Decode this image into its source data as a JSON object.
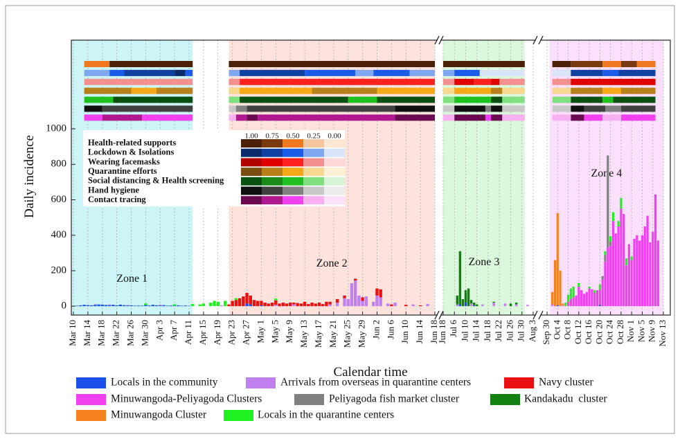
{
  "chart_data": {
    "type": "stacked-bar",
    "ylabel": "Daily incidence",
    "xlabel": "Calendar time",
    "ylim": [
      -50,
      1500
    ],
    "yticks": [
      0,
      200,
      400,
      600,
      800,
      1000
    ],
    "grid": true,
    "xticks": [
      [
        "Mar 10",
        "Mar 14",
        "Mar 18",
        "Mar 22",
        "Mar 26",
        "Mar 30",
        "Apr 3",
        "Apr 7",
        "Apr 11",
        "Apr 15",
        "Apr 19",
        "Apr 23",
        "Apr 27",
        "May 1",
        "May 5",
        "May 9",
        "May 13",
        "May 17",
        "May 21",
        "May 25",
        "May 29",
        "Jun 2",
        "Jun 6",
        "Jun 10",
        "Jun 14",
        "Jun 18"
      ],
      [
        "Jun 18",
        "Jul 6",
        "Jul 10",
        "Jul 14",
        "Jul 18",
        "Jul 22",
        "Jul 26",
        "Jul 30",
        "Aug 3"
      ],
      [
        "Sep 30",
        "Oct 4",
        "Oct 8",
        "Oct 12",
        "Oct 16",
        "Oct 20",
        "Oct 24",
        "Oct 28",
        "Nov 1",
        "Nov 5",
        "Nov 9",
        "Nov 13"
      ]
    ],
    "zones": [
      {
        "label": "Zone 1",
        "start": "Mar 10",
        "end": "Apr 12",
        "color": "#cdf5f8"
      },
      {
        "label": "Zone 2",
        "start": "Apr 22",
        "end": "Jun 18",
        "color": "#fde3dc"
      },
      {
        "label": "Zone 3",
        "start": "Jun 18",
        "end": "Jul 31",
        "color": "#dcf8dc"
      },
      {
        "label": "Zone 4",
        "start": "Oct 1",
        "end": "Nov 13",
        "color": "#fbe0fb"
      }
    ],
    "levels": [
      {
        "value": 1,
        "label": "1.00"
      },
      {
        "value": 0.75,
        "label": "0.75"
      },
      {
        "value": 0.5,
        "label": "0.50"
      },
      {
        "value": 0.25,
        "label": "0.25"
      },
      {
        "value": 0,
        "label": "0.00"
      }
    ],
    "policies": [
      {
        "name": "Health-related supports",
        "colors": [
          "#4a2108",
          "#7a3a10",
          "#f07820",
          "#f5c7a0",
          "#fde6d2"
        ],
        "periods": [
          [
            "Mar 13",
            "Mar 20",
            0.5
          ],
          [
            "Mar 20",
            "Apr 12",
            1
          ],
          [
            "Apr 22",
            "Jun 18",
            1
          ],
          [
            "Jun 18",
            "Jul 31",
            1
          ],
          [
            "Oct 2",
            "Oct 9",
            1
          ],
          [
            "Oct 9",
            "Oct 21",
            0.75
          ],
          [
            "Oct 21",
            "Oct 28",
            0.5
          ],
          [
            "Oct 28",
            "Nov 3",
            0.75
          ],
          [
            "Nov 3",
            "Nov 10",
            0.5
          ]
        ]
      },
      {
        "name": "Lockdown & Isolations",
        "colors": [
          "#0a2a6a",
          "#1040a0",
          "#1a5ce8",
          "#80a8f0",
          "#d8e4fa"
        ],
        "periods": [
          [
            "Mar 13",
            "Mar 20",
            0.25
          ],
          [
            "Mar 20",
            "Mar 24",
            0.5
          ],
          [
            "Mar 24",
            "Apr 7",
            0.75
          ],
          [
            "Apr 7",
            "Apr 10",
            1
          ],
          [
            "Apr 10",
            "Apr 12",
            0.5
          ],
          [
            "Apr 22",
            "Apr 25",
            0.25
          ],
          [
            "Apr 25",
            "May 13",
            0.75
          ],
          [
            "May 13",
            "May 27",
            0.5
          ],
          [
            "May 27",
            "Jun 1",
            0.25
          ],
          [
            "Jun 1",
            "Jun 11",
            0.5
          ],
          [
            "Jun 11",
            "Jun 18",
            0.25
          ],
          [
            "Jun 18",
            "Jul 6",
            0.25
          ],
          [
            "Jul 6",
            "Jul 15",
            0.5
          ],
          [
            "Jul 15",
            "Jul 31",
            0
          ],
          [
            "Oct 2",
            "Oct 9",
            0
          ],
          [
            "Oct 9",
            "Oct 21",
            0.75
          ],
          [
            "Oct 21",
            "Oct 27",
            0.5
          ],
          [
            "Oct 27",
            "Nov 10",
            0.75
          ]
        ]
      },
      {
        "name": "Wearing facemasks",
        "colors": [
          "#b00000",
          "#e00000",
          "#ff2020",
          "#f59090",
          "#fcd8d8"
        ],
        "periods": [
          [
            "Mar 13",
            "Apr 12",
            0.25
          ],
          [
            "Apr 22",
            "Apr 25",
            0.25
          ],
          [
            "Apr 25",
            "Jun 18",
            0.5
          ],
          [
            "Jun 18",
            "Jul 6",
            0.25
          ],
          [
            "Jul 6",
            "Jul 13",
            0.75
          ],
          [
            "Jul 13",
            "Jul 19",
            0.5
          ],
          [
            "Jul 19",
            "Jul 22",
            0.75
          ],
          [
            "Jul 22",
            "Jul 31",
            0.25
          ],
          [
            "Oct 2",
            "Oct 9",
            0.25
          ],
          [
            "Oct 9",
            "Nov 10",
            0.75
          ]
        ]
      },
      {
        "name": "Quarantine efforts",
        "colors": [
          "#7a4e10",
          "#b8801a",
          "#f5a818",
          "#f8d890",
          "#fdf0d4"
        ],
        "periods": [
          [
            "Mar 13",
            "Mar 26",
            0.75
          ],
          [
            "Mar 26",
            "Apr 2",
            0.5
          ],
          [
            "Apr 2",
            "Apr 12",
            0.75
          ],
          [
            "Apr 22",
            "Apr 25",
            0.25
          ],
          [
            "Apr 25",
            "May 15",
            0.5
          ],
          [
            "May 15",
            "Jun 2",
            0.75
          ],
          [
            "Jun 2",
            "Jun 18",
            0.5
          ],
          [
            "Jun 18",
            "Jul 6",
            0.25
          ],
          [
            "Jul 6",
            "Jul 19",
            0.5
          ],
          [
            "Jul 19",
            "Jul 23",
            0.75
          ],
          [
            "Jul 23",
            "Jul 31",
            0.25
          ],
          [
            "Oct 2",
            "Oct 9",
            0.25
          ],
          [
            "Oct 9",
            "Oct 21",
            0.75
          ],
          [
            "Oct 21",
            "Oct 28",
            0.5
          ],
          [
            "Oct 28",
            "Nov 10",
            0.75
          ]
        ]
      },
      {
        "name": "Social distancing & Health screening",
        "colors": [
          "#0a5010",
          "#1a8a1a",
          "#20c020",
          "#80e080",
          "#d8f4d8"
        ],
        "periods": [
          [
            "Mar 13",
            "Mar 21",
            0.5
          ],
          [
            "Mar 21",
            "Apr 12",
            1
          ],
          [
            "Apr 22",
            "Apr 25",
            0.25
          ],
          [
            "Apr 25",
            "May 25",
            1
          ],
          [
            "May 25",
            "Jun 2",
            0.5
          ],
          [
            "Jun 2",
            "Jun 18",
            1
          ],
          [
            "Jun 18",
            "Jul 6",
            0.25
          ],
          [
            "Jul 6",
            "Jul 19",
            0.5
          ],
          [
            "Jul 19",
            "Jul 23",
            1
          ],
          [
            "Jul 23",
            "Jul 31",
            0.25
          ],
          [
            "Oct 2",
            "Oct 9",
            0.25
          ],
          [
            "Oct 9",
            "Oct 21",
            1
          ],
          [
            "Oct 21",
            "Oct 25",
            0.5
          ],
          [
            "Oct 25",
            "Nov 10",
            1
          ]
        ]
      },
      {
        "name": "Hand hygiene",
        "colors": [
          "#101010",
          "#404040",
          "#808080",
          "#c8c8c8",
          "#ececec"
        ],
        "periods": [
          [
            "Mar 13",
            "Mar 18",
            1
          ],
          [
            "Mar 18",
            "Apr 12",
            0.75
          ],
          [
            "Apr 22",
            "Apr 24",
            0.25
          ],
          [
            "Apr 24",
            "Apr 27",
            0.5
          ],
          [
            "Apr 27",
            "Jun 7",
            0.75
          ],
          [
            "Jun 7",
            "Jun 18",
            1
          ],
          [
            "Jun 18",
            "Jul 6",
            0.25
          ],
          [
            "Jul 6",
            "Jul 17",
            1
          ],
          [
            "Jul 17",
            "Jul 19",
            0.5
          ],
          [
            "Jul 19",
            "Jul 23",
            1
          ],
          [
            "Jul 23",
            "Jul 31",
            0.25
          ],
          [
            "Oct 2",
            "Oct 9",
            0.25
          ],
          [
            "Oct 9",
            "Oct 14",
            1
          ],
          [
            "Oct 14",
            "Oct 22",
            0.75
          ],
          [
            "Oct 22",
            "Oct 28",
            0.5
          ],
          [
            "Oct 28",
            "Nov 10",
            0.75
          ]
        ]
      },
      {
        "name": "Contact tracing",
        "colors": [
          "#6a0850",
          "#b01890",
          "#f040f0",
          "#f8b0f0",
          "#fde0fc"
        ],
        "periods": [
          [
            "Mar 13",
            "Mar 18",
            0.5
          ],
          [
            "Mar 18",
            "Mar 29",
            0.75
          ],
          [
            "Mar 29",
            "Apr 12",
            0.5
          ],
          [
            "Apr 22",
            "Apr 24",
            0.25
          ],
          [
            "Apr 24",
            "Apr 27",
            0.75
          ],
          [
            "Apr 27",
            "Apr 30",
            1
          ],
          [
            "Apr 30",
            "Jun 7",
            0.75
          ],
          [
            "Jun 7",
            "Jun 18",
            1
          ],
          [
            "Jun 18",
            "Jul 6",
            0.25
          ],
          [
            "Jul 6",
            "Jul 17",
            1
          ],
          [
            "Jul 17",
            "Jul 19",
            0.5
          ],
          [
            "Jul 19",
            "Jul 23",
            1
          ],
          [
            "Jul 23",
            "Jul 31",
            0.25
          ],
          [
            "Oct 2",
            "Oct 9",
            0.25
          ],
          [
            "Oct 9",
            "Oct 14",
            1
          ],
          [
            "Oct 14",
            "Oct 21",
            0.5
          ],
          [
            "Oct 21",
            "Oct 28",
            0.25
          ],
          [
            "Oct 28",
            "Nov 10",
            0.5
          ]
        ]
      }
    ],
    "series": [
      {
        "name": "Locals in the community",
        "color": "#1a50e8",
        "x": [
          "Mar 11",
          "Mar 12",
          "Mar 13",
          "Mar 14",
          "Mar 15",
          "Mar 16",
          "Mar 17",
          "Mar 18",
          "Mar 19",
          "Mar 20",
          "Mar 21",
          "Mar 22",
          "Mar 23",
          "Mar 24",
          "Mar 25",
          "Mar 26",
          "Mar 27",
          "Mar 28",
          "Mar 29",
          "Mar 30",
          "Mar 31",
          "Apr 1",
          "Apr 2",
          "Apr 3",
          "Apr 4",
          "Apr 5",
          "Apr 6",
          "Apr 7",
          "Apr 8",
          "Apr 9",
          "Apr 10",
          "Apr 11",
          "Apr 27",
          "Apr 28",
          "May 1",
          "Jul 8",
          "Jul 10",
          "Jul 13",
          "Oct 4",
          "Oct 20"
        ],
        "values": [
          3,
          5,
          8,
          6,
          5,
          8,
          10,
          9,
          7,
          6,
          8,
          5,
          9,
          6,
          4,
          5,
          3,
          4,
          3,
          6,
          4,
          8,
          5,
          4,
          6,
          3,
          4,
          3,
          5,
          3,
          4,
          2,
          15,
          10,
          5,
          10,
          20,
          5,
          5,
          8
        ]
      },
      {
        "name": "Arrivals from overseas in quarantine centers",
        "color": "#c080f0",
        "x": [
          "Mar 16",
          "Mar 20",
          "Mar 25",
          "Apr 3",
          "Apr 20",
          "May 5",
          "May 10",
          "May 20",
          "May 22",
          "May 24",
          "May 25",
          "May 26",
          "May 27",
          "May 28",
          "May 29",
          "May 30",
          "Jun 1",
          "Jun 2",
          "Jun 3",
          "Jun 5",
          "Jun 7",
          "Jun 12",
          "Jun 16",
          "Jul 7",
          "Jul 12",
          "Jul 16",
          "Jul 20",
          "Jul 24",
          "Jul 28",
          "Aug 1",
          "Oct 2",
          "Oct 6"
        ],
        "values": [
          3,
          4,
          3,
          5,
          5,
          8,
          10,
          10,
          20,
          45,
          40,
          130,
          145,
          60,
          30,
          55,
          25,
          60,
          50,
          15,
          20,
          10,
          12,
          10,
          15,
          10,
          20,
          15,
          10,
          8,
          10,
          5
        ]
      },
      {
        "name": "Navy cluster",
        "color": "#e81010",
        "x": [
          "Apr 22",
          "Apr 23",
          "Apr 24",
          "Apr 25",
          "Apr 26",
          "Apr 27",
          "Apr 28",
          "Apr 29",
          "Apr 30",
          "May 1",
          "May 2",
          "May 3",
          "May 4",
          "May 5",
          "May 6",
          "May 7",
          "May 8",
          "May 9",
          "May 10",
          "May 11",
          "May 12",
          "May 13",
          "May 14",
          "May 15",
          "May 16",
          "May 17",
          "May 18",
          "May 19",
          "May 20",
          "May 22",
          "May 24",
          "May 27",
          "May 29",
          "Jun 2",
          "Jun 3",
          "Jun 6",
          "Jun 10",
          "Jun 14"
        ],
        "values": [
          10,
          30,
          35,
          45,
          55,
          60,
          50,
          35,
          30,
          25,
          20,
          15,
          20,
          25,
          15,
          20,
          15,
          20,
          10,
          18,
          15,
          25,
          12,
          20,
          15,
          20,
          12,
          25,
          15,
          20,
          15,
          10,
          20,
          40,
          45,
          10,
          8,
          5
        ]
      },
      {
        "name": "Minuwangoda-Peliyagoda Clusters",
        "color": "#f040f0",
        "x": [
          "Oct 8",
          "Oct 9",
          "Oct 10",
          "Oct 11",
          "Oct 12",
          "Oct 13",
          "Oct 14",
          "Oct 15",
          "Oct 16",
          "Oct 17",
          "Oct 18",
          "Oct 19",
          "Oct 20",
          "Oct 21",
          "Oct 22",
          "Oct 23",
          "Oct 24",
          "Oct 25",
          "Oct 26",
          "Oct 27",
          "Oct 28",
          "Oct 29",
          "Oct 30",
          "Oct 31",
          "Nov 1",
          "Nov 2",
          "Nov 3",
          "Nov 4",
          "Nov 5",
          "Nov 6",
          "Nov 7",
          "Nov 8",
          "Nov 9",
          "Nov 10",
          "Nov 11"
        ],
        "values": [
          20,
          40,
          50,
          60,
          110,
          90,
          70,
          80,
          100,
          95,
          75,
          90,
          85,
          150,
          250,
          330,
          340,
          480,
          410,
          450,
          550,
          520,
          230,
          350,
          260,
          380,
          400,
          370,
          400,
          450,
          510,
          360,
          420,
          630,
          370
        ]
      },
      {
        "name": "Peliyagoda fish market cluster",
        "color": "#808080",
        "x": [
          "Oct 21",
          "Oct 22",
          "Oct 23",
          "Oct 24"
        ],
        "values": [
          20,
          40,
          520,
          25
        ]
      },
      {
        "name": "Kandakadu  cluster",
        "color": "#108010",
        "x": [
          "Jul 7",
          "Jul 8",
          "Jul 9",
          "Jul 10",
          "Jul 11",
          "Jul 12",
          "Jul 13",
          "Jul 14",
          "Jul 20",
          "Jul 26",
          "Jul 28"
        ],
        "values": [
          50,
          300,
          40,
          70,
          100,
          20,
          15,
          10,
          5,
          15,
          10
        ]
      },
      {
        "name": "Minuwangoda Cluster",
        "color": "#f58020",
        "x": [
          "Oct 2",
          "Oct 3",
          "Oct 4",
          "Oct 5",
          "Oct 6",
          "Oct 8"
        ],
        "values": [
          70,
          260,
          520,
          200,
          10,
          5
        ]
      },
      {
        "name": "Locals in the quarantine centers",
        "color": "#20f020",
        "x": [
          "Mar 30",
          "Apr 7",
          "Apr 12",
          "Apr 14",
          "Apr 15",
          "Apr 17",
          "Apr 18",
          "Apr 19",
          "Apr 21",
          "Apr 24",
          "May 5",
          "Oct 7",
          "Oct 8",
          "Oct 9",
          "Oct 10",
          "Oct 12",
          "Oct 16",
          "Oct 18",
          "Oct 20",
          "Oct 22",
          "Oct 24",
          "Oct 25",
          "Oct 27",
          "Oct 28",
          "Oct 30",
          "Nov 1"
        ],
        "values": [
          10,
          8,
          12,
          10,
          15,
          20,
          30,
          25,
          30,
          10,
          10,
          20,
          40,
          60,
          60,
          20,
          10,
          15,
          30,
          20,
          30,
          50,
          30,
          60,
          40,
          20
        ]
      }
    ]
  }
}
